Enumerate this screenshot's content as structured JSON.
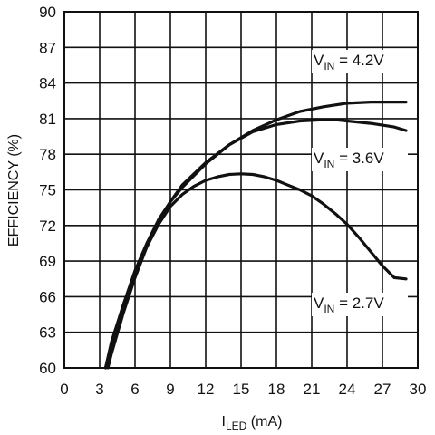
{
  "chart_data": {
    "type": "line",
    "title": "",
    "xlabel": {
      "main": "I",
      "sub": "LED",
      "unit": " (mA)"
    },
    "ylabel": "EFFICIENCY (%)",
    "xlim": [
      0,
      30
    ],
    "ylim": [
      60,
      90
    ],
    "xticks": [
      0,
      3,
      6,
      9,
      12,
      15,
      18,
      21,
      24,
      27,
      30
    ],
    "yticks": [
      60,
      63,
      66,
      69,
      72,
      75,
      78,
      81,
      84,
      87,
      90
    ],
    "grid": true,
    "series": [
      {
        "name": "V_IN = 4.2V",
        "label": {
          "main": "V",
          "sub": "IN",
          "rest": " = 4.2V"
        },
        "x": [
          3.5,
          4,
          5,
          6,
          7,
          8,
          9,
          10,
          12,
          14,
          16,
          18,
          20,
          22,
          24,
          26,
          28,
          29
        ],
        "y": [
          60,
          62.2,
          65.3,
          68.2,
          70.5,
          72.5,
          74,
          75.2,
          77.2,
          78.8,
          80,
          80.9,
          81.6,
          82,
          82.3,
          82.4,
          82.4,
          82.4
        ]
      },
      {
        "name": "V_IN = 3.6V",
        "label": {
          "main": "V",
          "sub": "IN",
          "rest": " = 3.6V"
        },
        "x": [
          3.7,
          4,
          5,
          6,
          7,
          8,
          9,
          10,
          12,
          14,
          16,
          18,
          20,
          22,
          23,
          24,
          26,
          28,
          29
        ],
        "y": [
          60,
          61.2,
          64.6,
          67.6,
          70.2,
          72.3,
          74,
          75.4,
          77.3,
          78.8,
          79.9,
          80.5,
          80.8,
          80.9,
          80.9,
          80.8,
          80.6,
          80.3,
          80
        ]
      },
      {
        "name": "V_IN = 2.7V",
        "label": {
          "main": "V",
          "sub": "IN",
          "rest": " = 2.7V"
        },
        "x": [
          3.5,
          4,
          5,
          6,
          7,
          8,
          9,
          10,
          11,
          12,
          13,
          14,
          15,
          16,
          17,
          18,
          19,
          20,
          21,
          22,
          23,
          24,
          25,
          26,
          27,
          28,
          29
        ],
        "y": [
          60,
          62,
          65.3,
          68,
          70.2,
          72.1,
          73.6,
          74.6,
          75.3,
          75.8,
          76.1,
          76.3,
          76.35,
          76.3,
          76.1,
          75.8,
          75.4,
          75,
          74.5,
          73.8,
          73,
          72.1,
          71,
          69.8,
          68.6,
          67.6,
          67.5
        ]
      }
    ]
  }
}
